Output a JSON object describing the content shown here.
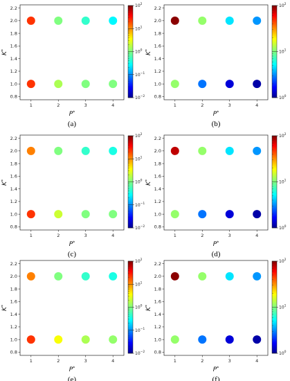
{
  "chart_data": [
    {
      "type": "scatter",
      "caption": "(a)",
      "xlabel": "P*",
      "ylabel": "K*",
      "xlim": [
        0.6,
        4.4
      ],
      "ylim": [
        0.75,
        2.25
      ],
      "x_ticks": [
        "1",
        "2",
        "3",
        "4"
      ],
      "y_ticks": [
        "0.8",
        "1.0",
        "1.2",
        "1.4",
        "1.6",
        "1.8",
        "2.0",
        "2.2"
      ],
      "colorbar": {
        "scale": "log",
        "min": 0.01,
        "max": 100,
        "tick_labels": [
          "10^-2",
          "10^-1",
          "10^0",
          "10^1",
          "10^2"
        ]
      },
      "points": [
        {
          "x": 1,
          "y": 1,
          "value": 20
        },
        {
          "x": 2,
          "y": 1,
          "value": 1.5
        },
        {
          "x": 3,
          "y": 1,
          "value": 1
        },
        {
          "x": 4,
          "y": 1,
          "value": 1
        },
        {
          "x": 1,
          "y": 2,
          "value": 20
        },
        {
          "x": 2,
          "y": 2,
          "value": 1
        },
        {
          "x": 3,
          "y": 2,
          "value": 0.5
        },
        {
          "x": 4,
          "y": 2,
          "value": 0.3
        }
      ]
    },
    {
      "type": "scatter",
      "caption": "(b)",
      "xlabel": "P*",
      "ylabel": "K*",
      "xlim": [
        0.6,
        4.4
      ],
      "ylim": [
        0.75,
        2.25
      ],
      "x_ticks": [
        "1",
        "2",
        "3",
        "4"
      ],
      "y_ticks": [
        "0.8",
        "1.0",
        "1.2",
        "1.4",
        "1.6",
        "1.8",
        "2.0",
        "2.2"
      ],
      "colorbar": {
        "scale": "log",
        "min": 1,
        "max": 100,
        "tick_labels": [
          "10^0",
          "10^1",
          "10^2"
        ]
      },
      "points": [
        {
          "x": 1,
          "y": 1,
          "value": 11
        },
        {
          "x": 2,
          "y": 1,
          "value": 3
        },
        {
          "x": 3,
          "y": 1,
          "value": 1.5
        },
        {
          "x": 4,
          "y": 1,
          "value": 1.2
        },
        {
          "x": 1,
          "y": 2,
          "value": 95
        },
        {
          "x": 2,
          "y": 2,
          "value": 11
        },
        {
          "x": 3,
          "y": 2,
          "value": 5
        },
        {
          "x": 4,
          "y": 2,
          "value": 3.5
        }
      ]
    },
    {
      "type": "scatter",
      "caption": "(c)",
      "xlabel": "P*",
      "ylabel": "K*",
      "xlim": [
        0.6,
        4.4
      ],
      "ylim": [
        0.75,
        2.25
      ],
      "x_ticks": [
        "1",
        "2",
        "3",
        "4"
      ],
      "y_ticks": [
        "0.8",
        "1.0",
        "1.2",
        "1.4",
        "1.6",
        "1.8",
        "2.0",
        "2.2"
      ],
      "colorbar": {
        "scale": "log",
        "min": 0.01,
        "max": 100,
        "tick_labels": [
          "10^-2",
          "10^-1",
          "10^0",
          "10^1",
          "10^2"
        ]
      },
      "points": [
        {
          "x": 1,
          "y": 1,
          "value": 20
        },
        {
          "x": 2,
          "y": 1,
          "value": 2
        },
        {
          "x": 3,
          "y": 1,
          "value": 1
        },
        {
          "x": 4,
          "y": 1,
          "value": 1
        },
        {
          "x": 1,
          "y": 2,
          "value": 10
        },
        {
          "x": 2,
          "y": 2,
          "value": 1
        },
        {
          "x": 3,
          "y": 2,
          "value": 0.5
        },
        {
          "x": 4,
          "y": 2,
          "value": 0.4
        }
      ]
    },
    {
      "type": "scatter",
      "caption": "(d)",
      "xlabel": "P*",
      "ylabel": "K*",
      "xlim": [
        0.6,
        4.4
      ],
      "ylim": [
        0.75,
        2.25
      ],
      "x_ticks": [
        "1",
        "2",
        "3",
        "4"
      ],
      "y_ticks": [
        "0.8",
        "1.0",
        "1.2",
        "1.4",
        "1.6",
        "1.8",
        "2.0",
        "2.2"
      ],
      "colorbar": {
        "scale": "log",
        "min": 1,
        "max": 100,
        "tick_labels": [
          "10^0",
          "10^1",
          "10^2"
        ]
      },
      "points": [
        {
          "x": 1,
          "y": 1,
          "value": 11
        },
        {
          "x": 2,
          "y": 1,
          "value": 3
        },
        {
          "x": 3,
          "y": 1,
          "value": 1.5
        },
        {
          "x": 4,
          "y": 1,
          "value": 1.2
        },
        {
          "x": 1,
          "y": 2,
          "value": 75
        },
        {
          "x": 2,
          "y": 2,
          "value": 11
        },
        {
          "x": 3,
          "y": 2,
          "value": 5
        },
        {
          "x": 4,
          "y": 2,
          "value": 3.5
        }
      ]
    },
    {
      "type": "scatter",
      "caption": "(e)",
      "xlabel": "P*",
      "ylabel": "K*",
      "xlim": [
        0.6,
        4.4
      ],
      "ylim": [
        0.75,
        2.25
      ],
      "x_ticks": [
        "1",
        "2",
        "3",
        "4"
      ],
      "y_ticks": [
        "0.8",
        "1.0",
        "1.2",
        "1.4",
        "1.6",
        "1.8",
        "2.0",
        "2.2"
      ],
      "colorbar": {
        "scale": "log",
        "min": 0.01,
        "max": 100,
        "tick_labels": [
          "10^-2",
          "10^-1",
          "10^0",
          "10^1",
          "10^2"
        ]
      },
      "points": [
        {
          "x": 1,
          "y": 1,
          "value": 20
        },
        {
          "x": 2,
          "y": 1,
          "value": 3
        },
        {
          "x": 3,
          "y": 1,
          "value": 1.5
        },
        {
          "x": 4,
          "y": 1,
          "value": 1.2
        },
        {
          "x": 1,
          "y": 2,
          "value": 10
        },
        {
          "x": 2,
          "y": 2,
          "value": 1
        },
        {
          "x": 3,
          "y": 2,
          "value": 0.5
        },
        {
          "x": 4,
          "y": 2,
          "value": 0.4
        }
      ]
    },
    {
      "type": "scatter",
      "caption": "(f)",
      "xlabel": "P*",
      "ylabel": "K*",
      "xlim": [
        0.6,
        4.4
      ],
      "ylim": [
        0.75,
        2.25
      ],
      "x_ticks": [
        "1",
        "2",
        "3",
        "4"
      ],
      "y_ticks": [
        "0.8",
        "1.0",
        "1.2",
        "1.4",
        "1.6",
        "1.8",
        "2.0",
        "2.2"
      ],
      "colorbar": {
        "scale": "log",
        "min": 1,
        "max": 100,
        "tick_labels": [
          "10^0",
          "10^1",
          "10^2"
        ]
      },
      "points": [
        {
          "x": 1,
          "y": 1,
          "value": 11
        },
        {
          "x": 2,
          "y": 1,
          "value": 3
        },
        {
          "x": 3,
          "y": 1,
          "value": 1.5
        },
        {
          "x": 4,
          "y": 1,
          "value": 1.2
        },
        {
          "x": 1,
          "y": 2,
          "value": 95
        },
        {
          "x": 2,
          "y": 2,
          "value": 11
        },
        {
          "x": 3,
          "y": 2,
          "value": 5
        },
        {
          "x": 4,
          "y": 2,
          "value": 3.5
        }
      ]
    }
  ],
  "colormap": "jet"
}
